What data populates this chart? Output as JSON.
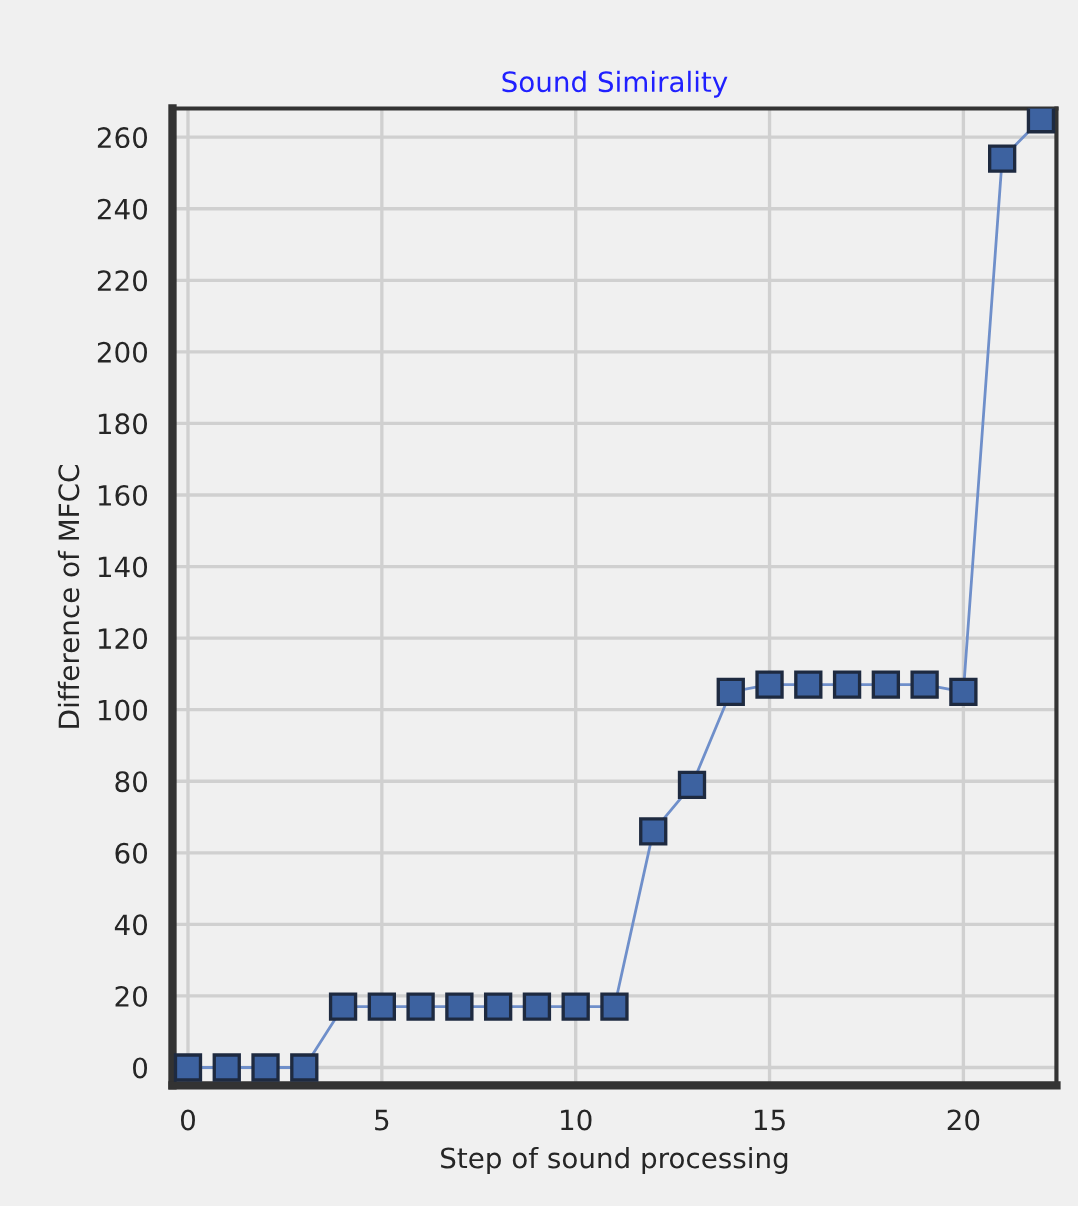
{
  "chart_data": {
    "type": "line",
    "title": "Sound Simirality",
    "xlabel": "Step of sound processing",
    "ylabel": "Difference of MFCC",
    "x": [
      0,
      1,
      2,
      3,
      4,
      5,
      6,
      7,
      8,
      9,
      10,
      11,
      12,
      13,
      14,
      15,
      16,
      17,
      18,
      19,
      20,
      21,
      22
    ],
    "series": [
      {
        "color": "#3d62a0",
        "values": [
          0,
          0,
          0,
          0,
          17,
          17,
          17,
          17,
          17,
          17,
          17,
          17,
          66,
          79,
          105,
          107,
          107,
          107,
          107,
          107,
          105,
          254,
          265
        ]
      }
    ],
    "xlim": [
      -0.4,
      22.4
    ],
    "ylim": [
      -5,
      268
    ],
    "xticks": [
      0,
      5,
      10,
      15,
      20
    ],
    "yticks": [
      0,
      20,
      40,
      60,
      80,
      100,
      120,
      140,
      160,
      180,
      200,
      220,
      240,
      260
    ],
    "grid": true,
    "marker": "square",
    "line_style": "solid"
  }
}
